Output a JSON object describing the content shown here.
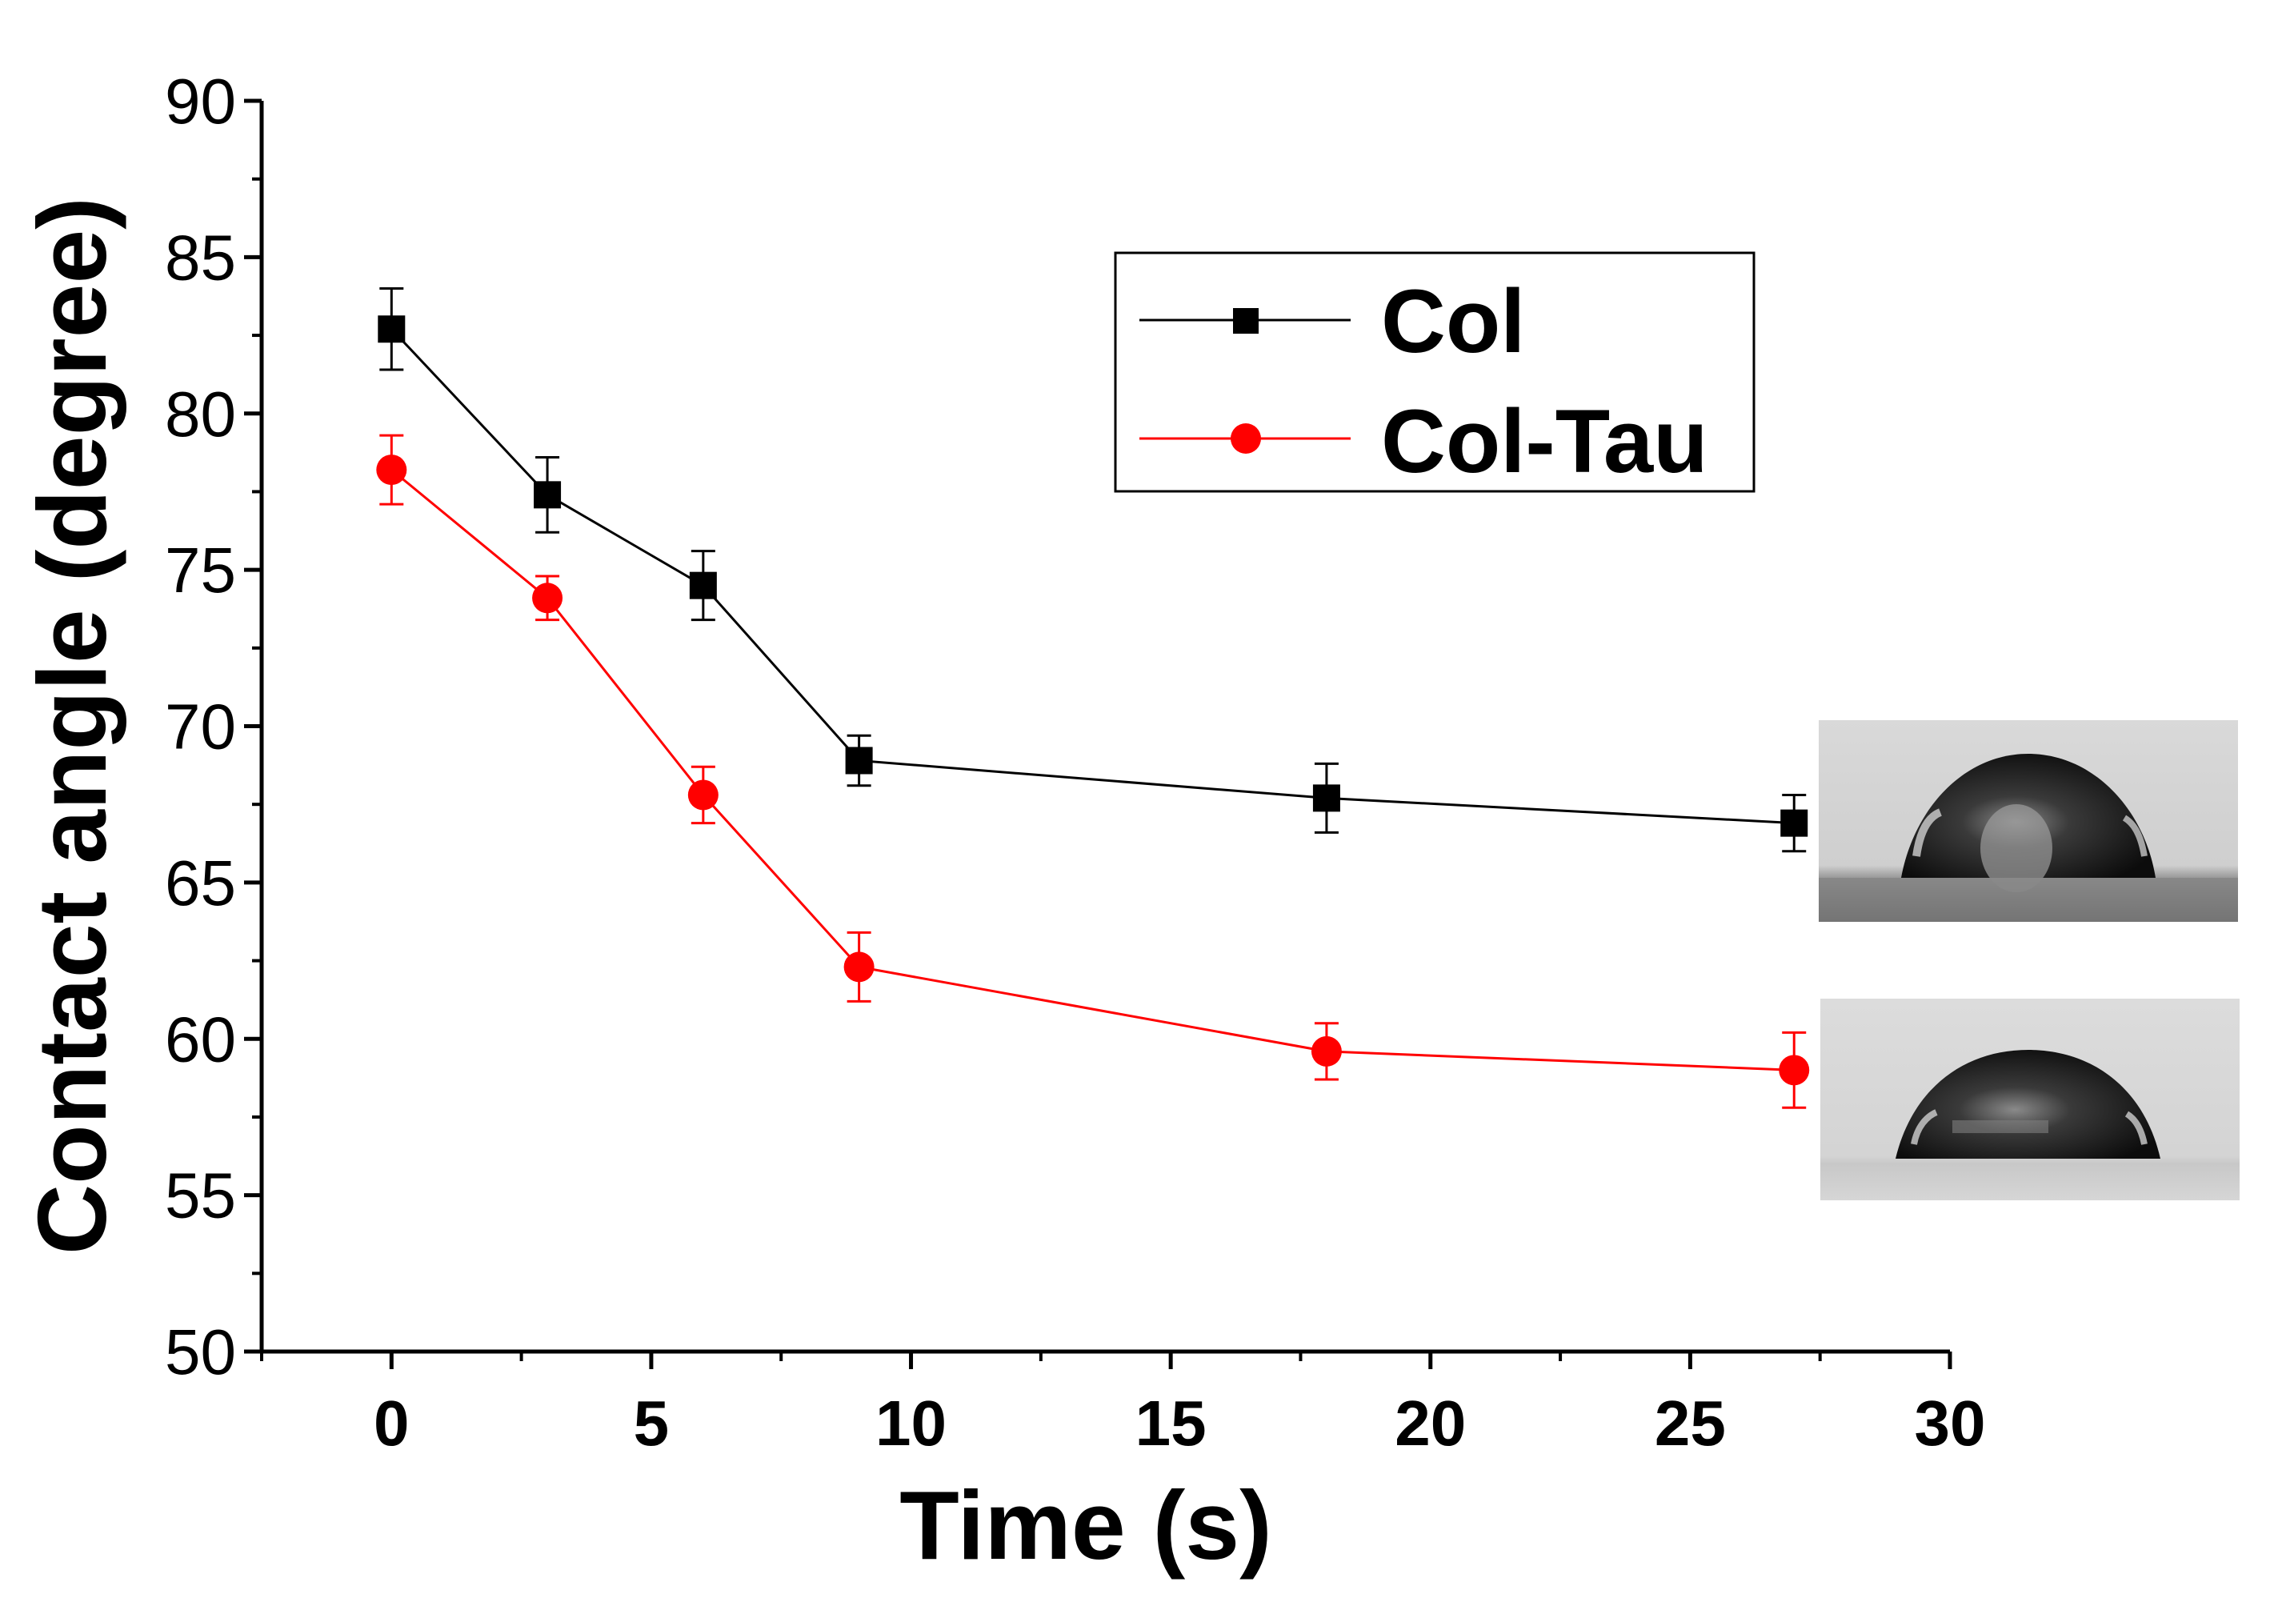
{
  "chart_data": {
    "type": "line",
    "title": "",
    "xlabel": "Time (s)",
    "ylabel": "Contact angle (degree)",
    "xlim": [
      -2.5,
      30
    ],
    "ylim": [
      50,
      90
    ],
    "x_ticks": [
      0,
      5,
      10,
      15,
      20,
      25,
      30
    ],
    "y_ticks": [
      50,
      55,
      60,
      65,
      70,
      75,
      80,
      85,
      90
    ],
    "x": [
      0,
      3,
      6,
      9,
      18,
      27
    ],
    "series": [
      {
        "name": "Col",
        "color": "#000000",
        "marker": "square",
        "values": [
          82.7,
          77.4,
          74.5,
          68.9,
          67.7,
          66.9
        ],
        "errors": [
          1.3,
          1.2,
          1.1,
          0.8,
          1.1,
          0.9
        ]
      },
      {
        "name": "Col-Tau",
        "color": "#ff0000",
        "marker": "circle",
        "values": [
          78.2,
          74.1,
          67.8,
          62.3,
          59.6,
          59.0
        ],
        "errors": [
          1.1,
          0.7,
          0.9,
          1.1,
          0.9,
          1.2
        ]
      }
    ],
    "grid": false,
    "legend_position": "top-right",
    "insets": [
      {
        "name": "droplet-image-col",
        "description_icon": "water-droplet-icon"
      },
      {
        "name": "droplet-image-col-tau",
        "description_icon": "water-droplet-icon"
      }
    ]
  }
}
